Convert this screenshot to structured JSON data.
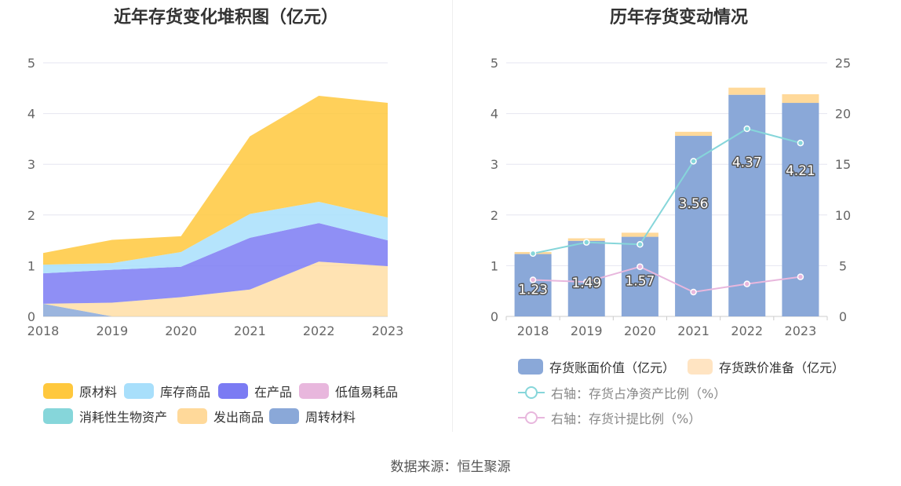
{
  "left_chart": {
    "title": "近年存货变化堆积图（亿元）",
    "legend": [
      {
        "name": "原材料",
        "color": "#ffc83d"
      },
      {
        "name": "库存商品",
        "color": "#a8dffb"
      },
      {
        "name": "在产品",
        "color": "#7b7bf3"
      },
      {
        "name": "低值易耗品",
        "color": "#e8b7dd"
      },
      {
        "name": "消耗性生物资产",
        "color": "#86d6da"
      },
      {
        "name": "发出商品",
        "color": "#ffd99a"
      },
      {
        "name": "周转材料",
        "color": "#8aa8d8"
      }
    ]
  },
  "right_chart": {
    "title": "历年存货变动情况",
    "legend": [
      {
        "name": "存货账面价值（亿元）",
        "color": "#8aa8d8",
        "kind": "bar"
      },
      {
        "name": "存货跌价准备（亿元）",
        "color": "#ffe4c2",
        "kind": "bar"
      },
      {
        "name": "右轴：存货占净资产比例（%）",
        "color": "#86d6da",
        "kind": "line"
      },
      {
        "name": "右轴：存货计提比例（%）",
        "color": "#e8b7dd",
        "kind": "line"
      }
    ]
  },
  "source": "数据来源：恒生聚源",
  "chart_data": [
    {
      "type": "area",
      "title": "近年存货变化堆积图（亿元）",
      "x": [
        "2018",
        "2019",
        "2020",
        "2021",
        "2022",
        "2023"
      ],
      "ylim": [
        0,
        5
      ],
      "yticks": [
        0,
        1,
        2,
        3,
        4,
        5
      ],
      "stacked": true,
      "series": [
        {
          "name": "周转材料",
          "values": [
            0.25,
            0.0,
            0.0,
            0.0,
            0.0,
            0.0
          ]
        },
        {
          "name": "发出商品",
          "values": [
            0.0,
            0.27,
            0.38,
            0.53,
            1.08,
            0.99
          ]
        },
        {
          "name": "在产品",
          "values": [
            0.6,
            0.65,
            0.6,
            1.02,
            0.76,
            0.51
          ]
        },
        {
          "name": "库存商品",
          "values": [
            0.17,
            0.13,
            0.29,
            0.47,
            0.42,
            0.45
          ]
        },
        {
          "name": "原材料",
          "values": [
            0.23,
            0.46,
            0.31,
            1.53,
            2.09,
            2.26
          ]
        }
      ],
      "grid": true,
      "legend_position": "bottom"
    },
    {
      "type": "bar",
      "title": "历年存货变动情况",
      "categories": [
        "2018",
        "2019",
        "2020",
        "2021",
        "2022",
        "2023"
      ],
      "ylim": [
        0,
        5
      ],
      "yticks": [
        0,
        1,
        2,
        3,
        4,
        5
      ],
      "y2lim": [
        0,
        25
      ],
      "y2ticks": [
        0,
        5,
        10,
        15,
        20,
        25
      ],
      "series": [
        {
          "name": "存货账面价值（亿元）",
          "values": [
            1.23,
            1.49,
            1.57,
            3.56,
            4.37,
            4.21
          ],
          "labels": [
            "1.23",
            "1.49",
            "1.57",
            "3.56",
            "4.37",
            "4.21"
          ]
        },
        {
          "name": "存货跌价准备（亿元）",
          "values": [
            0.04,
            0.05,
            0.08,
            0.08,
            0.14,
            0.17
          ]
        },
        {
          "name": "右轴：存货占净资产比例（%）",
          "axis": "right",
          "type": "line",
          "values": [
            6.2,
            7.3,
            7.1,
            15.3,
            18.5,
            17.1
          ]
        },
        {
          "name": "右轴：存货计提比例（%）",
          "axis": "right",
          "type": "line",
          "values": [
            3.6,
            3.4,
            4.9,
            2.4,
            3.2,
            3.9
          ]
        }
      ],
      "grid": true,
      "legend_position": "bottom"
    }
  ]
}
